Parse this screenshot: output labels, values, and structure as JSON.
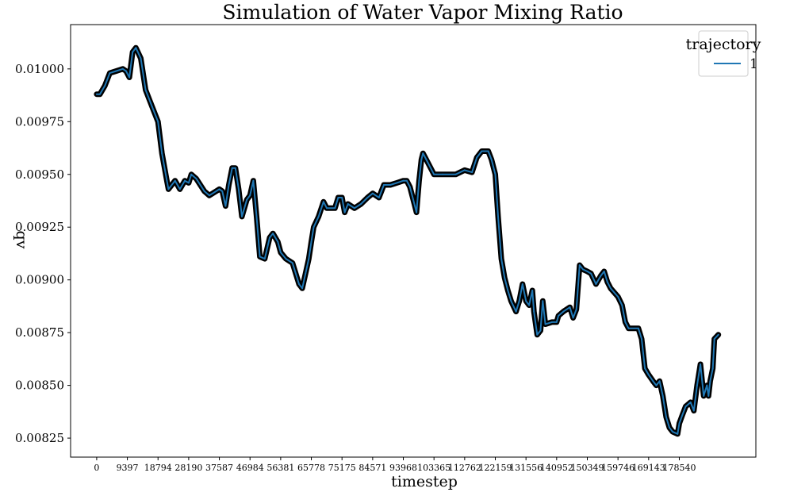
{
  "chart_data": {
    "type": "line",
    "title": "Simulation of Water Vapor Mixing Ratio",
    "xlabel": "timestep",
    "ylabel": "qv",
    "xlim": [
      -8000,
      202000
    ],
    "ylim": [
      0.00816,
      0.01021
    ],
    "x_ticks": [
      0,
      9397,
      18794,
      28190,
      37587,
      46984,
      56381,
      65778,
      75175,
      84571,
      93968,
      103365,
      112762,
      122159,
      131556,
      140952,
      150349,
      159746,
      169143,
      178540
    ],
    "y_ticks": [
      "0.00825",
      "0.00850",
      "0.00875",
      "0.00900",
      "0.00925",
      "0.00950",
      "0.00975",
      "0.01000"
    ],
    "legend": {
      "title": "trajectory",
      "position": "top-right",
      "entries": [
        "1"
      ]
    },
    "grid": false,
    "series": [
      {
        "name": "1",
        "color": "#1f77b4",
        "marker_color": "#000000",
        "points": [
          [
            0,
            0.00988
          ],
          [
            1000,
            0.00988
          ],
          [
            2500,
            0.00992
          ],
          [
            4000,
            0.00998
          ],
          [
            6000,
            0.00999
          ],
          [
            8000,
            0.01
          ],
          [
            9000,
            0.00999
          ],
          [
            10000,
            0.00996
          ],
          [
            11000,
            0.01008
          ],
          [
            12000,
            0.0101
          ],
          [
            13500,
            0.01005
          ],
          [
            15000,
            0.0099
          ],
          [
            17000,
            0.00982
          ],
          [
            18794,
            0.00975
          ],
          [
            20000,
            0.0096
          ],
          [
            21500,
            0.00947
          ],
          [
            22000,
            0.00943
          ],
          [
            24000,
            0.00947
          ],
          [
            25500,
            0.00943
          ],
          [
            27000,
            0.00947
          ],
          [
            28190,
            0.00946
          ],
          [
            29000,
            0.0095
          ],
          [
            30500,
            0.00948
          ],
          [
            33000,
            0.00942
          ],
          [
            34500,
            0.0094
          ],
          [
            37587,
            0.00943
          ],
          [
            38500,
            0.00942
          ],
          [
            39500,
            0.00935
          ],
          [
            40500,
            0.00945
          ],
          [
            41500,
            0.00953
          ],
          [
            42500,
            0.00953
          ],
          [
            43500,
            0.00943
          ],
          [
            44500,
            0.0093
          ],
          [
            46000,
            0.00938
          ],
          [
            46984,
            0.0094
          ],
          [
            48000,
            0.00947
          ],
          [
            49000,
            0.0093
          ],
          [
            50000,
            0.00911
          ],
          [
            51500,
            0.0091
          ],
          [
            53000,
            0.0092
          ],
          [
            54000,
            0.00922
          ],
          [
            55500,
            0.00918
          ],
          [
            56381,
            0.00913
          ],
          [
            58000,
            0.0091
          ],
          [
            60000,
            0.00908
          ],
          [
            62000,
            0.00898
          ],
          [
            63000,
            0.00896
          ],
          [
            64000,
            0.00903
          ],
          [
            65000,
            0.0091
          ],
          [
            65778,
            0.00918
          ],
          [
            66500,
            0.00925
          ],
          [
            68000,
            0.0093
          ],
          [
            69500,
            0.00937
          ],
          [
            70500,
            0.00934
          ],
          [
            73000,
            0.00934
          ],
          [
            74000,
            0.00939
          ],
          [
            75175,
            0.00939
          ],
          [
            76000,
            0.00932
          ],
          [
            77000,
            0.00936
          ],
          [
            79000,
            0.00934
          ],
          [
            81000,
            0.00936
          ],
          [
            83000,
            0.00939
          ],
          [
            84571,
            0.00941
          ],
          [
            86500,
            0.00939
          ],
          [
            88000,
            0.00945
          ],
          [
            90000,
            0.00945
          ],
          [
            92000,
            0.00946
          ],
          [
            93968,
            0.00947
          ],
          [
            95000,
            0.00947
          ],
          [
            96000,
            0.00944
          ],
          [
            97500,
            0.00935
          ],
          [
            98000,
            0.00932
          ],
          [
            98800,
            0.00947
          ],
          [
            99500,
            0.00957
          ],
          [
            100000,
            0.0096
          ],
          [
            101000,
            0.00957
          ],
          [
            103365,
            0.0095
          ],
          [
            106000,
            0.0095
          ],
          [
            110000,
            0.0095
          ],
          [
            112762,
            0.00952
          ],
          [
            115000,
            0.00951
          ],
          [
            116500,
            0.00958
          ],
          [
            118000,
            0.00961
          ],
          [
            120000,
            0.00961
          ],
          [
            121000,
            0.00957
          ],
          [
            122159,
            0.0095
          ],
          [
            123000,
            0.0093
          ],
          [
            124000,
            0.0091
          ],
          [
            125000,
            0.00901
          ],
          [
            126000,
            0.00895
          ],
          [
            127000,
            0.0089
          ],
          [
            128500,
            0.00885
          ],
          [
            129500,
            0.0089
          ],
          [
            130500,
            0.00898
          ],
          [
            131556,
            0.0089
          ],
          [
            132500,
            0.00888
          ],
          [
            133500,
            0.00895
          ],
          [
            134000,
            0.00885
          ],
          [
            135000,
            0.00874
          ],
          [
            136000,
            0.00876
          ],
          [
            136700,
            0.0089
          ],
          [
            137500,
            0.00879
          ],
          [
            139500,
            0.0088
          ],
          [
            140952,
            0.0088
          ],
          [
            141500,
            0.00883
          ],
          [
            143000,
            0.00885
          ],
          [
            145000,
            0.00887
          ],
          [
            146000,
            0.00882
          ],
          [
            147000,
            0.00886
          ],
          [
            148000,
            0.00907
          ],
          [
            149000,
            0.00905
          ],
          [
            150349,
            0.00904
          ],
          [
            151500,
            0.00903
          ],
          [
            153000,
            0.00898
          ],
          [
            154500,
            0.00902
          ],
          [
            155500,
            0.00904
          ],
          [
            156500,
            0.00899
          ],
          [
            157500,
            0.00896
          ],
          [
            159746,
            0.00892
          ],
          [
            161000,
            0.00888
          ],
          [
            162000,
            0.0088
          ],
          [
            163000,
            0.00877
          ],
          [
            166000,
            0.00877
          ],
          [
            167000,
            0.00872
          ],
          [
            168000,
            0.00858
          ],
          [
            169143,
            0.00855
          ],
          [
            170500,
            0.00852
          ],
          [
            171500,
            0.0085
          ],
          [
            172500,
            0.00852
          ],
          [
            173500,
            0.00845
          ],
          [
            174500,
            0.00835
          ],
          [
            175500,
            0.0083
          ],
          [
            176500,
            0.00828
          ],
          [
            178000,
            0.00827
          ],
          [
            178540,
            0.00832
          ],
          [
            179500,
            0.00836
          ],
          [
            180500,
            0.0084
          ],
          [
            182000,
            0.00842
          ],
          [
            183000,
            0.00838
          ],
          [
            184000,
            0.0085
          ],
          [
            185000,
            0.0086
          ],
          [
            186000,
            0.00845
          ],
          [
            187000,
            0.0085
          ],
          [
            187500,
            0.00845
          ],
          [
            188000,
            0.00852
          ],
          [
            188800,
            0.00858
          ],
          [
            189300,
            0.00872
          ],
          [
            190500,
            0.00874
          ]
        ]
      }
    ]
  }
}
